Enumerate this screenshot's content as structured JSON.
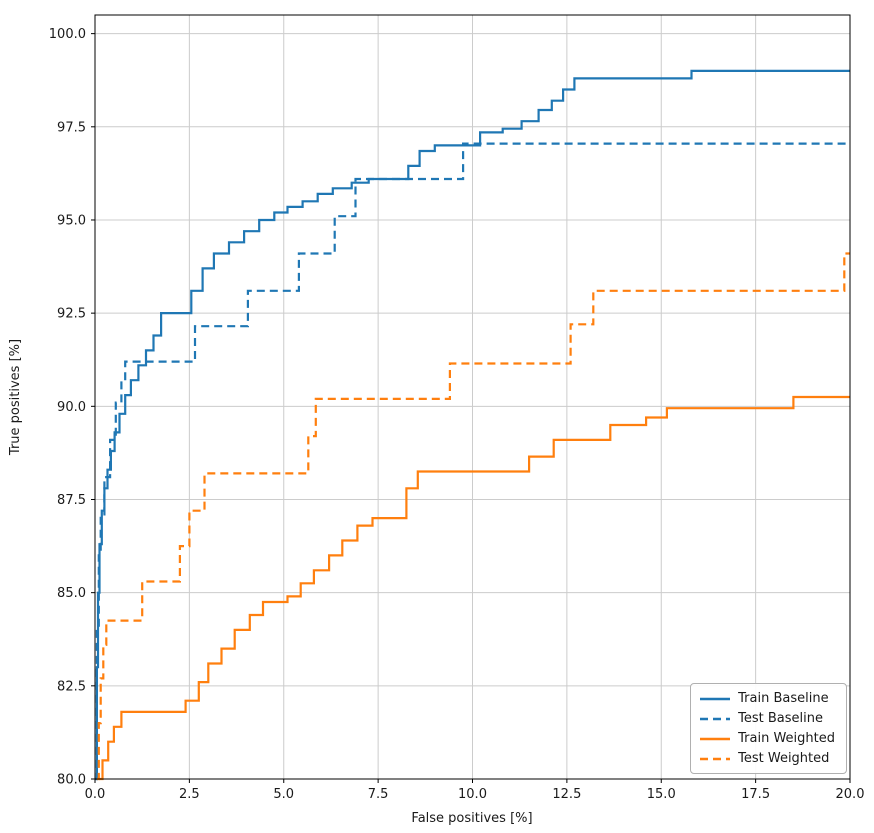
{
  "chart_data": {
    "type": "line",
    "subtype": "step-post",
    "title": "",
    "xlabel": "False positives [%]",
    "ylabel": "True positives [%]",
    "xlim": [
      0,
      20
    ],
    "ylim": [
      80,
      100.5
    ],
    "grid": true,
    "legend_position": "lower right",
    "xticks": [
      0.0,
      2.5,
      5.0,
      7.5,
      10.0,
      12.5,
      15.0,
      17.5,
      20.0
    ],
    "xtick_labels": [
      "0.0",
      "2.5",
      "5.0",
      "7.5",
      "10.0",
      "12.5",
      "15.0",
      "17.5",
      "20.0"
    ],
    "yticks": [
      80.0,
      82.5,
      85.0,
      87.5,
      90.0,
      92.5,
      95.0,
      97.5,
      100.0
    ],
    "ytick_labels": [
      "80.0",
      "82.5",
      "85.0",
      "87.5",
      "90.0",
      "92.5",
      "95.0",
      "97.5",
      "100.0"
    ],
    "colors": {
      "baseline": "#1f77b4",
      "weighted": "#ff7f0e"
    },
    "series": [
      {
        "name": "Train Baseline",
        "color": "#1f77b4",
        "style": "solid",
        "points": [
          [
            0.0,
            80.0
          ],
          [
            0.05,
            83.0
          ],
          [
            0.08,
            85.0
          ],
          [
            0.12,
            86.3
          ],
          [
            0.18,
            87.2
          ],
          [
            0.25,
            87.8
          ],
          [
            0.33,
            88.3
          ],
          [
            0.42,
            88.8
          ],
          [
            0.52,
            89.3
          ],
          [
            0.65,
            89.8
          ],
          [
            0.8,
            90.3
          ],
          [
            0.95,
            90.7
          ],
          [
            1.15,
            91.1
          ],
          [
            1.35,
            91.5
          ],
          [
            1.55,
            91.9
          ],
          [
            1.75,
            92.5
          ],
          [
            2.55,
            93.1
          ],
          [
            2.85,
            93.7
          ],
          [
            3.15,
            94.1
          ],
          [
            3.55,
            94.4
          ],
          [
            3.95,
            94.7
          ],
          [
            4.35,
            95.0
          ],
          [
            4.75,
            95.2
          ],
          [
            5.1,
            95.35
          ],
          [
            5.5,
            95.5
          ],
          [
            5.9,
            95.7
          ],
          [
            6.3,
            95.85
          ],
          [
            6.8,
            96.0
          ],
          [
            7.25,
            96.1
          ],
          [
            8.3,
            96.45
          ],
          [
            8.6,
            96.85
          ],
          [
            9.0,
            97.0
          ],
          [
            10.2,
            97.35
          ],
          [
            10.8,
            97.45
          ],
          [
            11.3,
            97.65
          ],
          [
            11.75,
            97.95
          ],
          [
            12.1,
            98.2
          ],
          [
            12.4,
            98.5
          ],
          [
            12.7,
            98.8
          ],
          [
            15.8,
            99.0
          ],
          [
            20.0,
            99.0
          ]
        ]
      },
      {
        "name": "Test Baseline",
        "color": "#1f77b4",
        "style": "dashed",
        "points": [
          [
            0.0,
            80.0
          ],
          [
            0.05,
            84.0
          ],
          [
            0.1,
            86.0
          ],
          [
            0.15,
            87.1
          ],
          [
            0.25,
            88.1
          ],
          [
            0.4,
            89.1
          ],
          [
            0.55,
            90.1
          ],
          [
            0.7,
            90.7
          ],
          [
            0.8,
            91.2
          ],
          [
            2.65,
            92.15
          ],
          [
            4.05,
            93.1
          ],
          [
            5.4,
            94.1
          ],
          [
            6.35,
            95.1
          ],
          [
            6.9,
            96.1
          ],
          [
            9.75,
            97.05
          ],
          [
            20.0,
            97.05
          ]
        ]
      },
      {
        "name": "Train Weighted",
        "color": "#ff7f0e",
        "style": "solid",
        "points": [
          [
            0.1,
            80.0
          ],
          [
            0.2,
            80.5
          ],
          [
            0.35,
            81.0
          ],
          [
            0.5,
            81.4
          ],
          [
            0.7,
            81.8
          ],
          [
            2.4,
            82.1
          ],
          [
            2.75,
            82.6
          ],
          [
            3.0,
            83.1
          ],
          [
            3.35,
            83.5
          ],
          [
            3.7,
            84.0
          ],
          [
            4.1,
            84.4
          ],
          [
            4.45,
            84.75
          ],
          [
            5.1,
            84.9
          ],
          [
            5.45,
            85.25
          ],
          [
            5.8,
            85.6
          ],
          [
            6.2,
            86.0
          ],
          [
            6.55,
            86.4
          ],
          [
            6.95,
            86.8
          ],
          [
            7.35,
            87.0
          ],
          [
            8.25,
            87.8
          ],
          [
            8.55,
            88.25
          ],
          [
            11.5,
            88.65
          ],
          [
            12.15,
            89.1
          ],
          [
            13.65,
            89.5
          ],
          [
            14.6,
            89.7
          ],
          [
            15.15,
            89.95
          ],
          [
            18.5,
            90.25
          ],
          [
            20.0,
            90.25
          ]
        ]
      },
      {
        "name": "Test Weighted",
        "color": "#ff7f0e",
        "style": "dashed",
        "points": [
          [
            0.05,
            80.0
          ],
          [
            0.1,
            81.5
          ],
          [
            0.15,
            82.7
          ],
          [
            0.22,
            83.6
          ],
          [
            0.3,
            84.25
          ],
          [
            1.25,
            85.3
          ],
          [
            2.25,
            86.25
          ],
          [
            2.5,
            87.2
          ],
          [
            2.9,
            88.2
          ],
          [
            5.65,
            89.2
          ],
          [
            5.85,
            90.2
          ],
          [
            9.4,
            91.15
          ],
          [
            12.6,
            92.2
          ],
          [
            13.2,
            93.1
          ],
          [
            19.85,
            94.1
          ],
          [
            20.0,
            94.1
          ]
        ]
      }
    ]
  }
}
